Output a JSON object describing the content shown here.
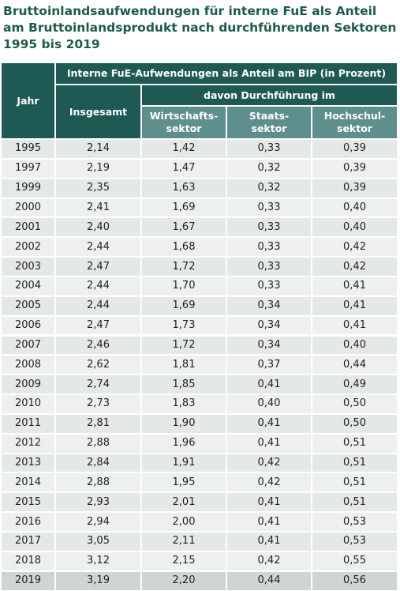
{
  "title": [
    "Bruttoinlandsaufwendungen für interne FuE als Anteil",
    "am Bruttoinlandsprodukt nach durchführenden Sektoren",
    "1995 bis 2019"
  ],
  "header": {
    "jahr": "Jahr",
    "group": "Interne FuE-Aufwendungen als Anteil am BIP (in Prozent)",
    "insgesamt": "Insgesamt",
    "davon": "davon Durchführung im",
    "sectors": [
      [
        "Wirtschafts-",
        "sektor"
      ],
      [
        "Staats-",
        "sektor"
      ],
      [
        "Hochschul-",
        "sektor"
      ]
    ]
  },
  "rows": [
    [
      "1995",
      "2,14",
      "1,42",
      "0,33",
      "0,39"
    ],
    [
      "1997",
      "2,19",
      "1,47",
      "0,32",
      "0,39"
    ],
    [
      "1999",
      "2,35",
      "1,63",
      "0,32",
      "0,39"
    ],
    [
      "2000",
      "2,41",
      "1,69",
      "0,33",
      "0,40"
    ],
    [
      "2001",
      "2,40",
      "1,67",
      "0,33",
      "0,40"
    ],
    [
      "2002",
      "2,44",
      "1,68",
      "0,33",
      "0,42"
    ],
    [
      "2003",
      "2,47",
      "1,72",
      "0,33",
      "0,42"
    ],
    [
      "2004",
      "2,44",
      "1,70",
      "0,33",
      "0,41"
    ],
    [
      "2005",
      "2,44",
      "1,69",
      "0,34",
      "0,41"
    ],
    [
      "2006",
      "2,47",
      "1,73",
      "0,34",
      "0,41"
    ],
    [
      "2007",
      "2,46",
      "1,72",
      "0,34",
      "0,40"
    ],
    [
      "2008",
      "2,62",
      "1,81",
      "0,37",
      "0,44"
    ],
    [
      "2009",
      "2,74",
      "1,85",
      "0,41",
      "0,49"
    ],
    [
      "2010",
      "2,73",
      "1,83",
      "0,40",
      "0,50"
    ],
    [
      "2011",
      "2,81",
      "1,90",
      "0,41",
      "0,50"
    ],
    [
      "2012",
      "2,88",
      "1,96",
      "0,41",
      "0,51"
    ],
    [
      "2013",
      "2,84",
      "1,91",
      "0,42",
      "0,51"
    ],
    [
      "2014",
      "2,88",
      "1,95",
      "0,42",
      "0,51"
    ],
    [
      "2015",
      "2,93",
      "2,01",
      "0,41",
      "0,51"
    ],
    [
      "2016",
      "2,94",
      "2,00",
      "0,41",
      "0,53"
    ],
    [
      "2017",
      "3,05",
      "2,11",
      "0,41",
      "0,53"
    ],
    [
      "2018",
      "3,12",
      "2,15",
      "0,42",
      "0,55"
    ],
    [
      "2019",
      "3,19",
      "2,20",
      "0,44",
      "0,56"
    ]
  ]
}
